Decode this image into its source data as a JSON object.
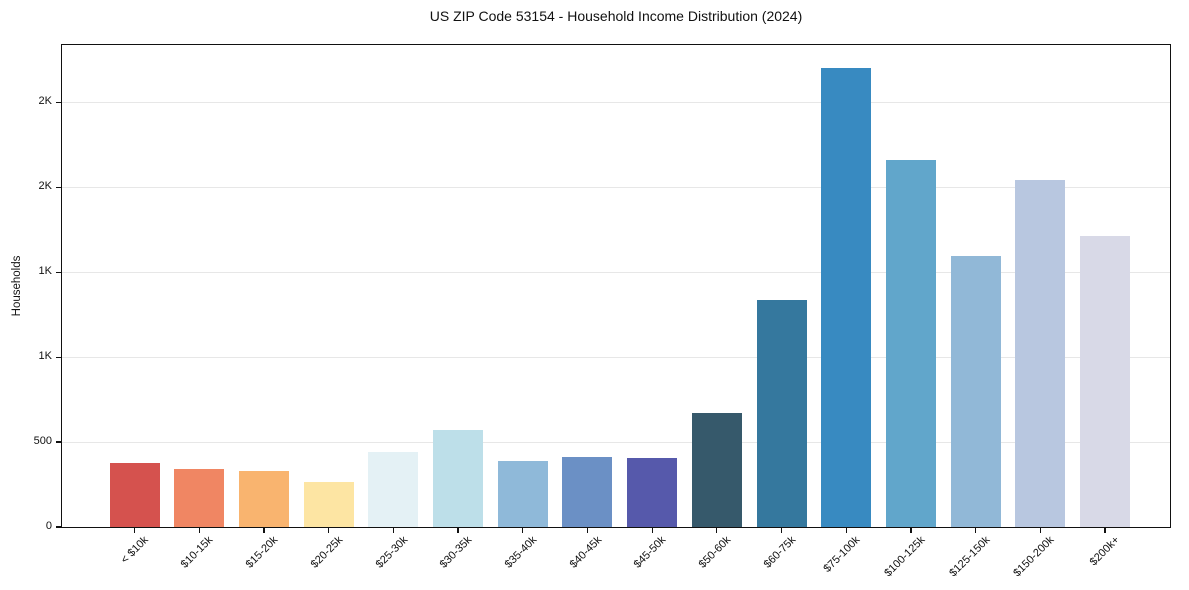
{
  "chart_data": {
    "type": "bar",
    "title": "US ZIP Code 53154 - Household Income Distribution (2024)",
    "xlabel": "",
    "ylabel": "Households",
    "categories": [
      "< $10k",
      "$10-15k",
      "$15-20k",
      "$20-25k",
      "$25-30k",
      "$30-35k",
      "$35-40k",
      "$40-45k",
      "$45-50k",
      "$50-60k",
      "$60-75k",
      "$75-100k",
      "$100-125k",
      "$125-150k",
      "$150-200k",
      "$200k+"
    ],
    "values": [
      375,
      340,
      330,
      265,
      440,
      570,
      390,
      415,
      405,
      670,
      1335,
      2700,
      2160,
      1595,
      2040,
      1710
    ],
    "bar_colors": [
      "#d5524e",
      "#f08663",
      "#f9b46f",
      "#fde5a3",
      "#e4f1f5",
      "#bddfe9",
      "#8fb9d9",
      "#6b90c5",
      "#5659ab",
      "#36596b",
      "#35789e",
      "#388ac1",
      "#61a6cb",
      "#91b8d7",
      "#b8c7e0",
      "#d8d9e7"
    ],
    "yticks": [
      {
        "value": 0,
        "label": "0"
      },
      {
        "value": 500,
        "label": "500"
      },
      {
        "value": 1000,
        "label": "1K"
      },
      {
        "value": 1500,
        "label": "1K"
      },
      {
        "value": 2000,
        "label": "2K"
      },
      {
        "value": 2500,
        "label": "2K"
      }
    ],
    "ylim": [
      0,
      2837
    ],
    "grid": "horizontal",
    "legend": "none",
    "colors": {
      "background": "#ffffff",
      "gridline": "#e7e7e7",
      "spine": "#111111",
      "text": "#111111"
    }
  }
}
